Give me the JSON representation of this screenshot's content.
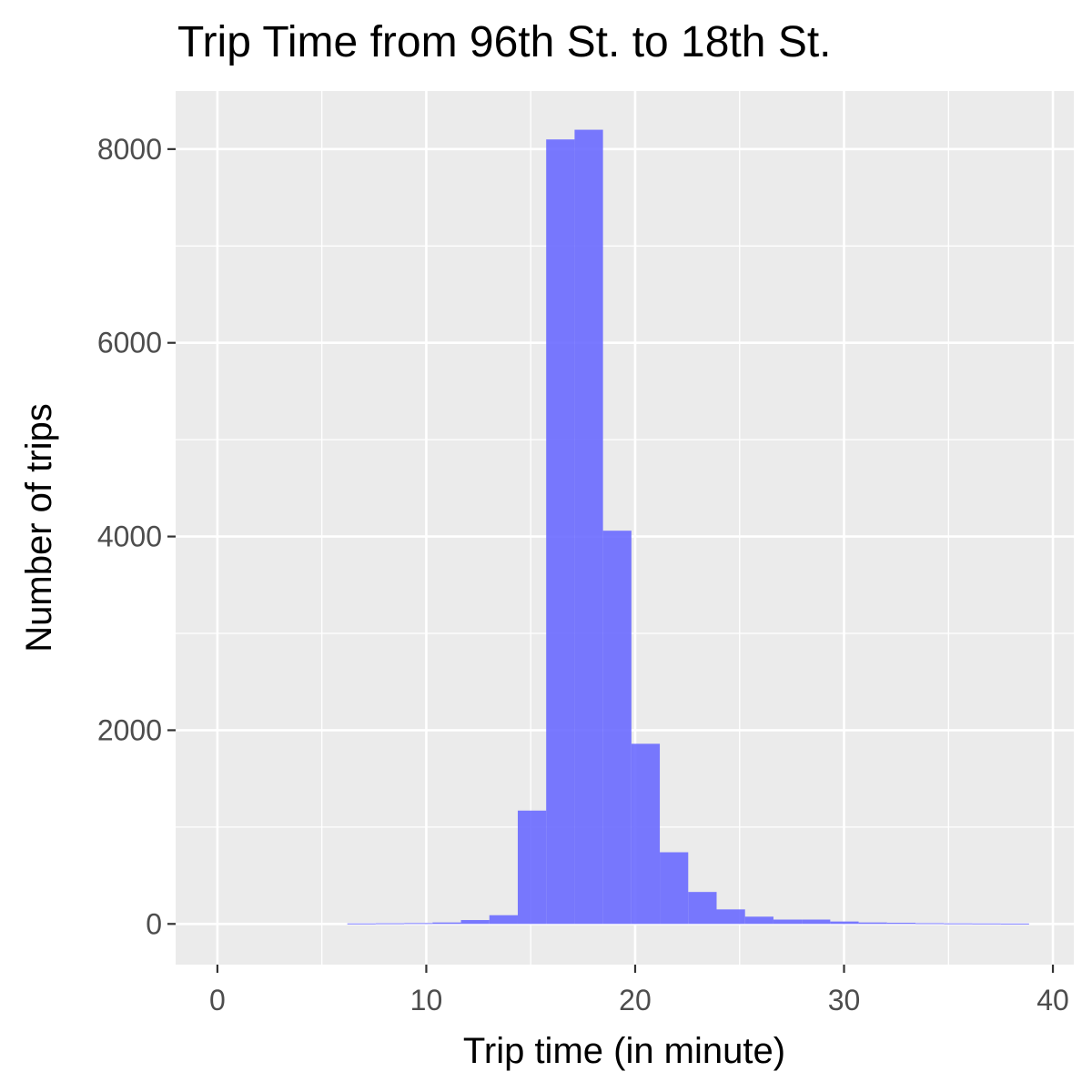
{
  "chart_data": {
    "type": "bar",
    "title": "Trip Time from 96th St. to 18th St.",
    "xlabel": "Trip time (in minute)",
    "ylabel": "Number of trips",
    "xlim": [
      -2,
      41
    ],
    "ylim": [
      -420,
      8600
    ],
    "xticks": [
      0,
      10,
      20,
      30,
      40
    ],
    "yticks": [
      0,
      2000,
      4000,
      6000,
      8000
    ],
    "grid": true,
    "bin_width": 1.36,
    "bins": [
      {
        "x": 6.9,
        "count": 5
      },
      {
        "x": 8.26,
        "count": 7
      },
      {
        "x": 9.62,
        "count": 9
      },
      {
        "x": 10.98,
        "count": 15
      },
      {
        "x": 12.34,
        "count": 40
      },
      {
        "x": 13.7,
        "count": 90
      },
      {
        "x": 15.06,
        "count": 1170
      },
      {
        "x": 16.42,
        "count": 8100
      },
      {
        "x": 17.78,
        "count": 8200
      },
      {
        "x": 19.14,
        "count": 4060
      },
      {
        "x": 20.5,
        "count": 1860
      },
      {
        "x": 21.86,
        "count": 740
      },
      {
        "x": 23.22,
        "count": 330
      },
      {
        "x": 24.58,
        "count": 150
      },
      {
        "x": 25.94,
        "count": 75
      },
      {
        "x": 27.3,
        "count": 45
      },
      {
        "x": 28.66,
        "count": 45
      },
      {
        "x": 30.02,
        "count": 25
      },
      {
        "x": 31.38,
        "count": 15
      },
      {
        "x": 32.74,
        "count": 12
      },
      {
        "x": 34.1,
        "count": 8
      },
      {
        "x": 35.46,
        "count": 6
      },
      {
        "x": 36.82,
        "count": 5
      },
      {
        "x": 38.18,
        "count": 4
      }
    ],
    "bar_color": "#6666ff",
    "bar_opacity": 0.88,
    "panel_background": "#ebebeb",
    "grid_color": "#ffffff"
  }
}
